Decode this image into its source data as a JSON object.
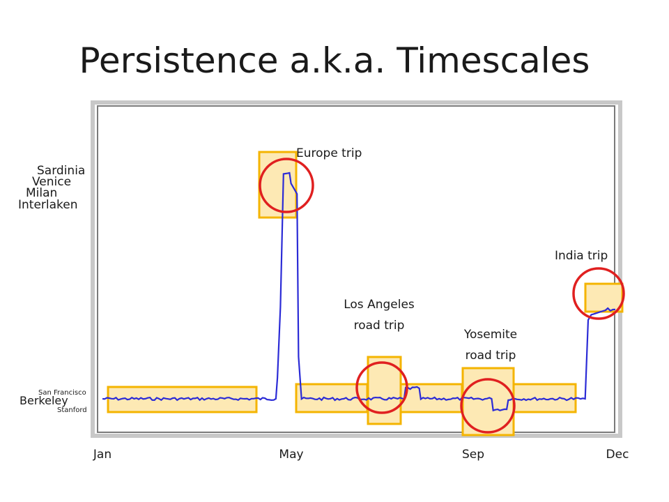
{
  "title": "Persistence a.k.a. Timescales",
  "colors": {
    "line": "#2b2bd6",
    "box_fill": "#fde9b4",
    "box_stroke": "#f4b400",
    "circle": "#e02020",
    "frame_outer": "#c8c8c8",
    "frame_inner": "#7a7a7a"
  },
  "chart_data": {
    "type": "line",
    "x_tick_labels": [
      "Jan",
      "May",
      "Sep",
      "Dec"
    ],
    "y_location_labels": [
      "Sardinia",
      "Venice",
      "Milan",
      "Interlaken",
      "San Francisco",
      "Berkeley",
      "Stanford"
    ],
    "annotations": [
      "Europe trip",
      "Los Angeles",
      "road trip",
      "Yosemite",
      "road trip",
      "India trip"
    ],
    "series": [
      {
        "values": [
          [
            0,
            0
          ],
          [
            30,
            0
          ],
          [
            60,
            0
          ],
          [
            90,
            0
          ],
          [
            115,
            0
          ],
          [
            116,
            0.08
          ],
          [
            118,
            0.35
          ],
          [
            120,
            0.86
          ],
          [
            124,
            0.86
          ],
          [
            125,
            0.82
          ],
          [
            127,
            0.8
          ],
          [
            129,
            0.78
          ],
          [
            130,
            0.16
          ],
          [
            132,
            0
          ],
          [
            160,
            0
          ],
          [
            190,
            0
          ],
          [
            200,
            0
          ],
          [
            201,
            0.04
          ],
          [
            210,
            0.04
          ],
          [
            211,
            0
          ],
          [
            240,
            0
          ],
          [
            258,
            0
          ],
          [
            259,
            -0.04
          ],
          [
            268,
            -0.04
          ],
          [
            269,
            0
          ],
          [
            300,
            0
          ],
          [
            320,
            0
          ],
          [
            322,
            0.3
          ],
          [
            324,
            0.32
          ],
          [
            335,
            0.34
          ],
          [
            340,
            0.34
          ]
        ]
      }
    ],
    "highlights": [
      "Europe trip",
      "Los Angeles road trip",
      "Yosemite road trip",
      "India trip"
    ]
  }
}
